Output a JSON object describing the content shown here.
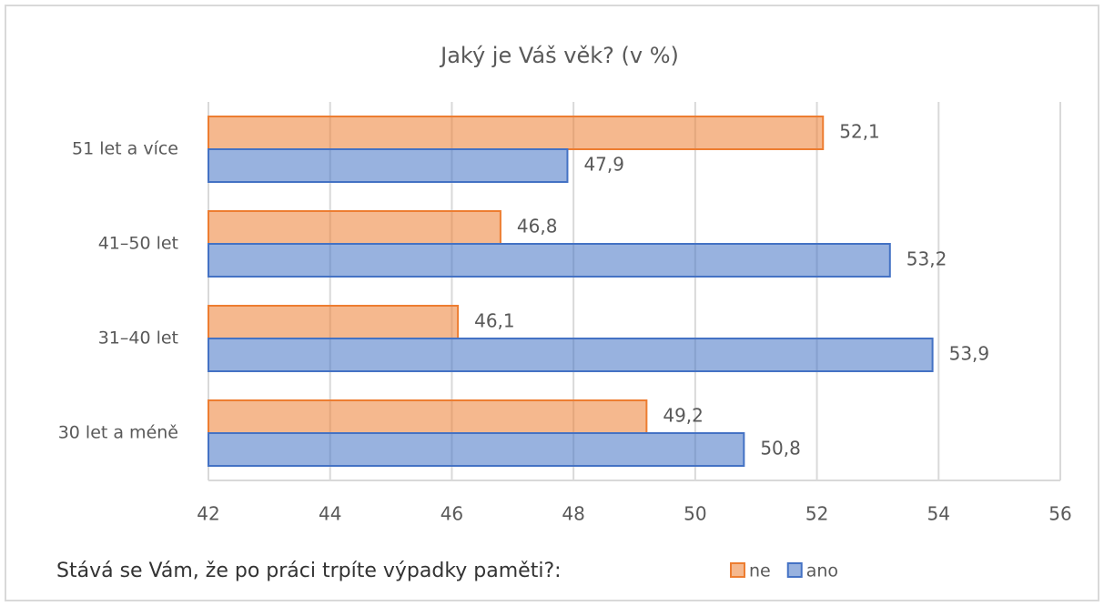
{
  "chart_data": {
    "type": "bar",
    "orientation": "horizontal",
    "title": "Jaký je Váš věk? (v %)",
    "categories": [
      "51 let a více",
      "41–50 let",
      "31–40 let",
      "30 let a méně"
    ],
    "series": [
      {
        "name": "ne",
        "color": "#ed7d31",
        "values": [
          52.1,
          46.8,
          46.1,
          49.2
        ],
        "value_labels": [
          "52,1",
          "46,8",
          "46,1",
          "49,2"
        ]
      },
      {
        "name": "ano",
        "color": "#4472c4",
        "values": [
          47.9,
          53.2,
          53.9,
          50.8
        ],
        "value_labels": [
          "47,9",
          "53,2",
          "53,9",
          "50,8"
        ]
      }
    ],
    "xlim": [
      42,
      56
    ],
    "xticks": [
      42,
      44,
      46,
      48,
      50,
      52,
      54,
      56
    ],
    "grid": true,
    "legend_title": "Stává se Vám, že po práci trpíte výpadky paměti?:",
    "legend": "bottom"
  }
}
